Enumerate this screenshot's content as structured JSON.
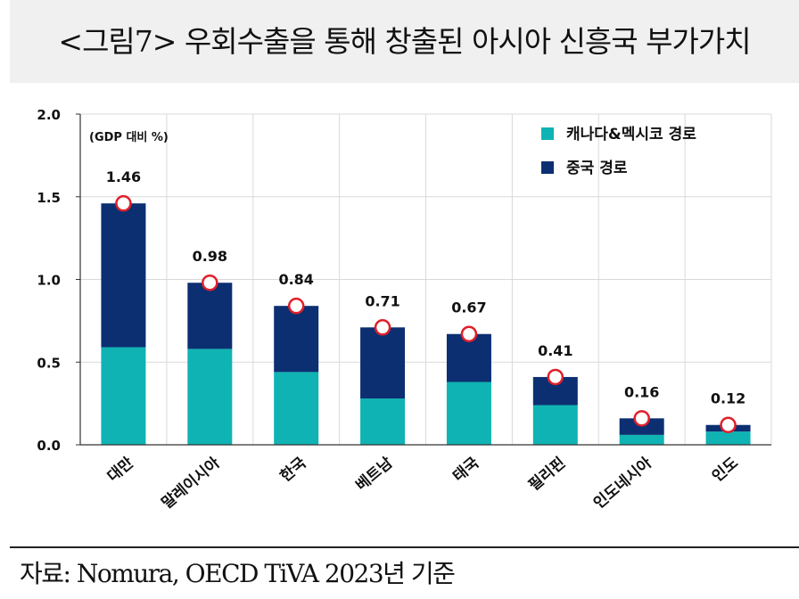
{
  "header": {
    "title": "<그림7> 우회수출을 통해 창출된 아시아 신흥국 부가가치"
  },
  "footer": {
    "source": "자료: Nomura, OECD TiVA 2023년 기준"
  },
  "chart_data": {
    "type": "bar",
    "stacked": true,
    "unit_label": "(GDP 대비 %)",
    "categories": [
      "대만",
      "말레이시아",
      "한국",
      "베트남",
      "태국",
      "필리핀",
      "인도네시아",
      "인도"
    ],
    "series": [
      {
        "name": "캐나다&멕시코 경로",
        "color": "#0fb3b3",
        "values": [
          0.59,
          0.58,
          0.44,
          0.28,
          0.38,
          0.24,
          0.06,
          0.08
        ]
      },
      {
        "name": "중국 경로",
        "color": "#0c2f72",
        "values": [
          0.87,
          0.4,
          0.4,
          0.43,
          0.29,
          0.17,
          0.1,
          0.04
        ]
      }
    ],
    "totals": [
      1.46,
      0.98,
      0.84,
      0.71,
      0.67,
      0.41,
      0.16,
      0.12
    ],
    "total_labels": [
      "1.46",
      "0.98",
      "0.84",
      "0.71",
      "0.67",
      "0.41",
      "0.16",
      "0.12"
    ],
    "ylim": [
      0,
      2.0
    ],
    "yticks": [
      0,
      0.5,
      1.0,
      1.5,
      2.0
    ],
    "ytick_labels": [
      "0.0",
      "0.5",
      "1.0",
      "1.5",
      "2.0"
    ],
    "grid": true,
    "legend_position": "top-right",
    "marker": "circle"
  }
}
